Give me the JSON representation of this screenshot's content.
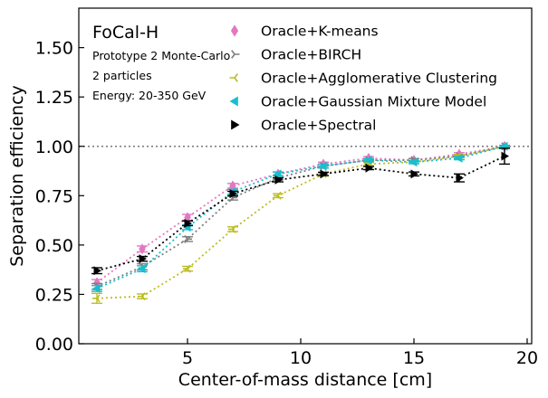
{
  "chart_data": {
    "type": "line",
    "title": "",
    "xlabel": "Center-of-mass distance [cm]",
    "ylabel": "Separation efficiency",
    "xlim": [
      0.2,
      20.2
    ],
    "ylim": [
      0,
      1.7
    ],
    "xticks": [
      5,
      10,
      15,
      20
    ],
    "yticks": [
      0.0,
      0.25,
      0.5,
      0.75,
      1.0,
      1.25,
      1.5
    ],
    "xtick_labels": [
      "5",
      "10",
      "15",
      "20"
    ],
    "ytick_labels": [
      "0.00",
      "0.25",
      "0.50",
      "0.75",
      "1.00",
      "1.25",
      "1.50"
    ],
    "reference_line": {
      "y": 1.0,
      "color": "#808080",
      "style": "dotted"
    },
    "annotations": {
      "title": "FoCal-H",
      "lines": [
        "Prototype 2 Monte-Carlo",
        "2 particles",
        "Energy: 20-350 GeV"
      ]
    },
    "legend_position": "upper-right",
    "x": [
      1,
      3,
      5,
      7,
      9,
      11,
      13,
      15,
      17,
      19
    ],
    "series": [
      {
        "name": "Oracle+K-means",
        "color": "#e377c2",
        "marker": "diamond",
        "values": [
          0.31,
          0.48,
          0.64,
          0.8,
          0.86,
          0.91,
          0.94,
          0.93,
          0.96,
          1.0
        ],
        "errors": [
          0.015,
          0.015,
          0.015,
          0.012,
          0.01,
          0.01,
          0.008,
          0.008,
          0.008,
          0.005
        ]
      },
      {
        "name": "Oracle+BIRCH",
        "color": "#7f7f7f",
        "marker": "tri_right",
        "values": [
          0.29,
          0.39,
          0.53,
          0.74,
          0.84,
          0.9,
          0.93,
          0.93,
          0.95,
          1.0
        ],
        "errors": [
          0.015,
          0.015,
          0.012,
          0.012,
          0.01,
          0.01,
          0.008,
          0.008,
          0.008,
          0.005
        ]
      },
      {
        "name": "Oracle+Agglomerative Clustering",
        "color": "#bcbd22",
        "marker": "tri_left",
        "values": [
          0.23,
          0.24,
          0.38,
          0.58,
          0.75,
          0.86,
          0.91,
          0.92,
          0.95,
          1.0
        ],
        "errors": [
          0.025,
          0.012,
          0.012,
          0.012,
          0.01,
          0.01,
          0.008,
          0.008,
          0.008,
          0.005
        ]
      },
      {
        "name": "Oracle+Gaussian Mixture Model",
        "color": "#17becf",
        "marker": "caret_left",
        "values": [
          0.28,
          0.38,
          0.59,
          0.77,
          0.86,
          0.9,
          0.93,
          0.92,
          0.94,
          1.0
        ],
        "errors": [
          0.015,
          0.015,
          0.012,
          0.012,
          0.01,
          0.01,
          0.008,
          0.008,
          0.008,
          0.005
        ]
      },
      {
        "name": "Oracle+Spectral",
        "color": "#000000",
        "marker": "triangle_right",
        "values": [
          0.37,
          0.43,
          0.61,
          0.76,
          0.83,
          0.86,
          0.89,
          0.86,
          0.84,
          0.95
        ],
        "errors": [
          0.015,
          0.012,
          0.012,
          0.012,
          0.01,
          0.008,
          0.008,
          0.01,
          0.02,
          0.04
        ]
      }
    ]
  }
}
